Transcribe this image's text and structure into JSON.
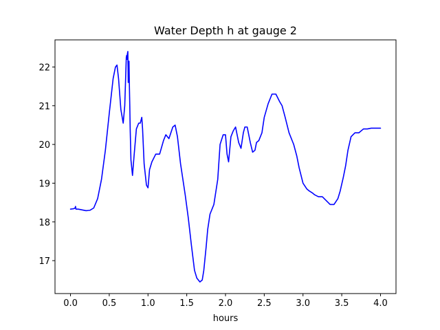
{
  "chart_data": {
    "type": "line",
    "title": "Water Depth h at gauge 2",
    "xlabel": "hours",
    "ylabel": "",
    "xlim": [
      -0.2,
      4.2
    ],
    "ylim": [
      16.15,
      22.7
    ],
    "xticks": [
      0.0,
      0.5,
      1.0,
      1.5,
      2.0,
      2.5,
      3.0,
      3.5,
      4.0
    ],
    "xtick_labels": [
      "0.0",
      "0.5",
      "1.0",
      "1.5",
      "2.0",
      "2.5",
      "3.0",
      "3.5",
      "4.0"
    ],
    "yticks": [
      17,
      18,
      19,
      20,
      21,
      22
    ],
    "ytick_labels": [
      "17",
      "18",
      "19",
      "20",
      "21",
      "22"
    ],
    "grid": false,
    "line_color": "#0000ff",
    "series": [
      {
        "x": [
          0.0,
          0.04,
          0.06,
          0.065,
          0.07,
          0.1,
          0.15,
          0.2,
          0.25,
          0.3,
          0.35,
          0.4,
          0.45,
          0.5,
          0.55,
          0.58,
          0.6,
          0.62,
          0.65,
          0.68,
          0.7,
          0.72,
          0.725,
          0.73,
          0.735,
          0.74,
          0.745,
          0.75,
          0.755,
          0.76,
          0.765,
          0.77,
          0.78,
          0.8,
          0.82,
          0.85,
          0.88,
          0.9,
          0.92,
          0.93,
          0.95,
          0.98,
          1.0,
          1.02,
          1.05,
          1.1,
          1.15,
          1.2,
          1.23,
          1.27,
          1.32,
          1.35,
          1.38,
          1.42,
          1.48,
          1.52,
          1.56,
          1.6,
          1.63,
          1.67,
          1.7,
          1.72,
          1.75,
          1.77,
          1.8,
          1.85,
          1.9,
          1.93,
          1.97,
          2.0,
          2.02,
          2.04,
          2.07,
          2.1,
          2.13,
          2.17,
          2.2,
          2.23,
          2.25,
          2.28,
          2.32,
          2.35,
          2.38,
          2.4,
          2.43,
          2.47,
          2.5,
          2.55,
          2.6,
          2.65,
          2.7,
          2.73,
          2.77,
          2.82,
          2.88,
          2.92,
          2.95,
          3.0,
          3.05,
          3.08,
          3.12,
          3.15,
          3.2,
          3.25,
          3.3,
          3.35,
          3.4,
          3.45,
          3.48,
          3.52,
          3.55,
          3.58,
          3.62,
          3.67,
          3.72,
          3.78,
          3.83,
          3.88,
          3.92,
          3.97,
          4.0
        ],
        "y": [
          18.33,
          18.34,
          18.36,
          18.4,
          18.33,
          18.33,
          18.31,
          18.29,
          18.3,
          18.36,
          18.6,
          19.1,
          19.85,
          20.8,
          21.7,
          22.0,
          22.05,
          21.7,
          20.9,
          20.55,
          21.0,
          22.25,
          22.3,
          22.2,
          22.35,
          22.4,
          21.6,
          21.8,
          22.15,
          21.5,
          21.0,
          20.4,
          19.6,
          19.2,
          19.7,
          20.4,
          20.55,
          20.55,
          20.7,
          20.4,
          19.5,
          18.95,
          18.88,
          19.35,
          19.55,
          19.75,
          19.75,
          20.1,
          20.25,
          20.15,
          20.45,
          20.5,
          20.2,
          19.5,
          18.7,
          18.1,
          17.4,
          16.75,
          16.55,
          16.45,
          16.5,
          16.75,
          17.35,
          17.8,
          18.2,
          18.45,
          19.1,
          20.0,
          20.25,
          20.25,
          19.75,
          19.55,
          20.2,
          20.35,
          20.45,
          20.05,
          19.9,
          20.3,
          20.45,
          20.45,
          20.05,
          19.8,
          19.85,
          20.05,
          20.1,
          20.3,
          20.7,
          21.05,
          21.3,
          21.3,
          21.1,
          21.0,
          20.7,
          20.3,
          20.0,
          19.7,
          19.4,
          19.0,
          18.85,
          18.8,
          18.75,
          18.7,
          18.65,
          18.65,
          18.55,
          18.45,
          18.45,
          18.6,
          18.8,
          19.15,
          19.45,
          19.85,
          20.2,
          20.3,
          20.3,
          20.4,
          20.4,
          20.42,
          20.42,
          20.42,
          20.42
        ]
      }
    ]
  }
}
